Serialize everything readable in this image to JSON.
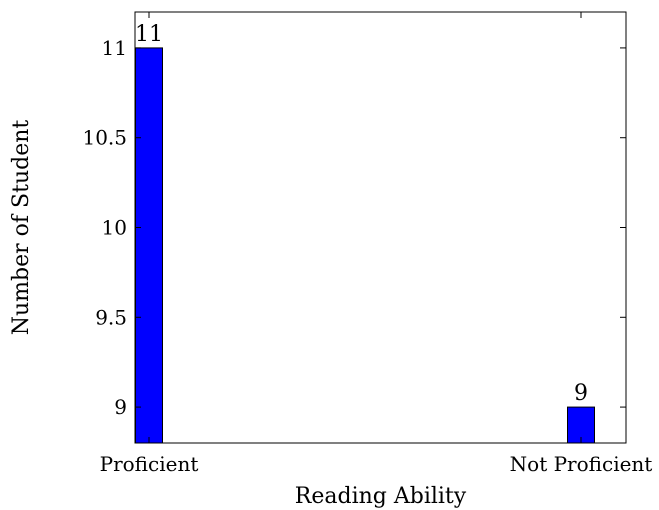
{
  "chart_data": {
    "type": "bar",
    "title": "",
    "xlabel": "Reading Ability",
    "ylabel": "Number of Student",
    "categories": [
      "Proficient",
      "Not Proficient"
    ],
    "values": [
      11,
      9
    ],
    "data_labels": [
      "11",
      "9"
    ],
    "ylim": [
      8.8,
      11.2
    ],
    "yticks": [
      9,
      9.5,
      10,
      10.5,
      11
    ],
    "ytick_labels": [
      "9",
      "9.5",
      "10",
      "10.5",
      "11"
    ],
    "grid": false,
    "legend": "none",
    "bar_color": "#0000ff",
    "bar_edge_color": "#000000"
  }
}
